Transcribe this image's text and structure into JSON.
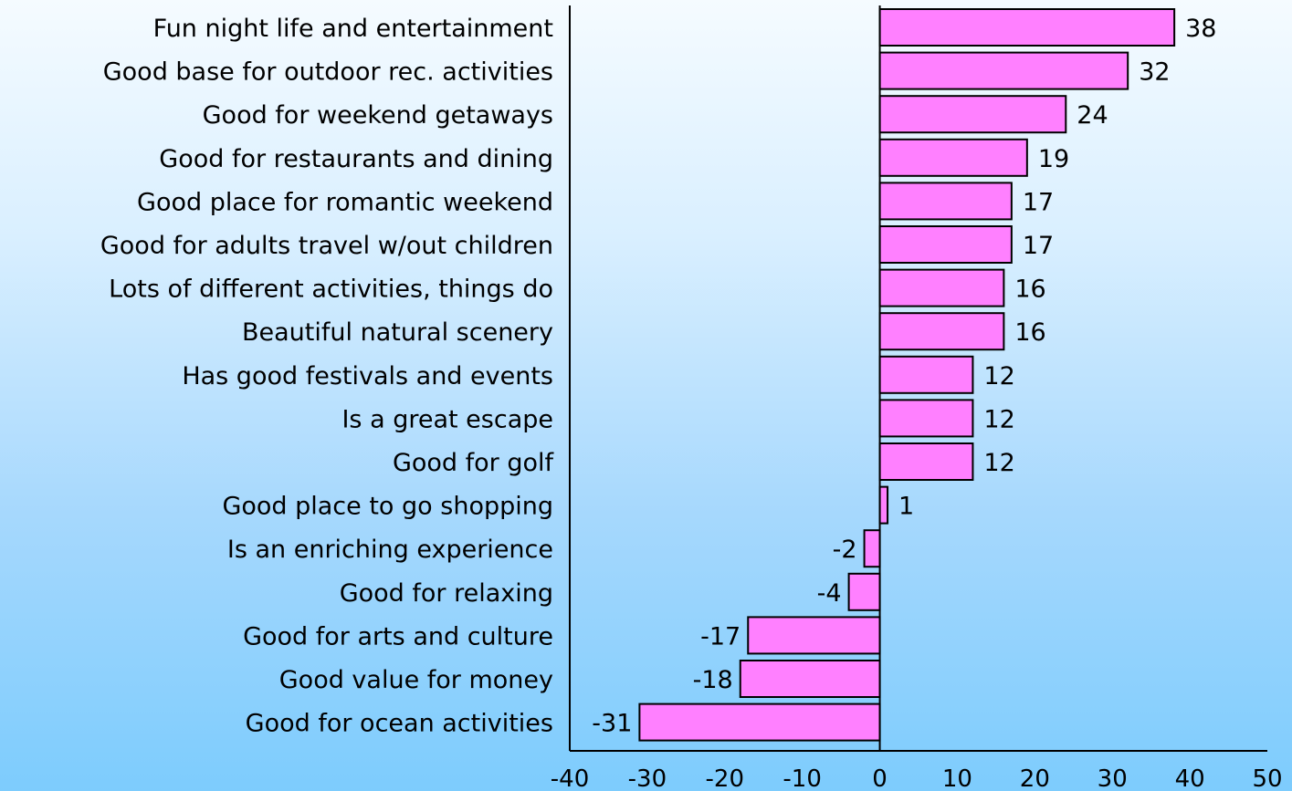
{
  "chart_data": {
    "type": "bar",
    "orientation": "horizontal",
    "categories": [
      "Fun night life and entertainment",
      "Good base for outdoor rec. activities",
      "Good for weekend getaways",
      "Good for restaurants and dining",
      "Good place for romantic weekend",
      "Good for adults travel w/out children",
      "Lots of different activities, things do",
      "Beautiful natural scenery",
      "Has good festivals and events",
      "Is a great escape",
      "Good for golf",
      "Good place to go shopping",
      "Is an enriching experience",
      "Good for relaxing",
      "Good for arts and culture",
      "Good value for money",
      "Good for ocean activities"
    ],
    "values": [
      38,
      32,
      24,
      19,
      17,
      17,
      16,
      16,
      12,
      12,
      12,
      1,
      -2,
      -4,
      -17,
      -18,
      -31
    ],
    "value_labels": [
      "38",
      "32",
      "24",
      "19",
      "17",
      "17",
      "16",
      "16",
      "12",
      "12",
      "12",
      "1",
      "-2",
      "-4",
      "-17",
      "-18",
      "-31"
    ],
    "xlim": [
      -40,
      50
    ],
    "xticks": [
      -40,
      -30,
      -20,
      -10,
      0,
      10,
      20,
      30,
      40,
      50
    ],
    "xtick_labels": [
      "-40",
      "-30",
      "-20",
      "-10",
      "0",
      "10",
      "20",
      "30",
      "40",
      "50"
    ],
    "title": "",
    "xlabel": "",
    "ylabel": "",
    "grid": false,
    "legend": "none",
    "bar_color": "#ff80ff",
    "bar_outline_color": "#000000",
    "background_top": "#f5fbff",
    "background_bottom": "#7dccfd"
  }
}
